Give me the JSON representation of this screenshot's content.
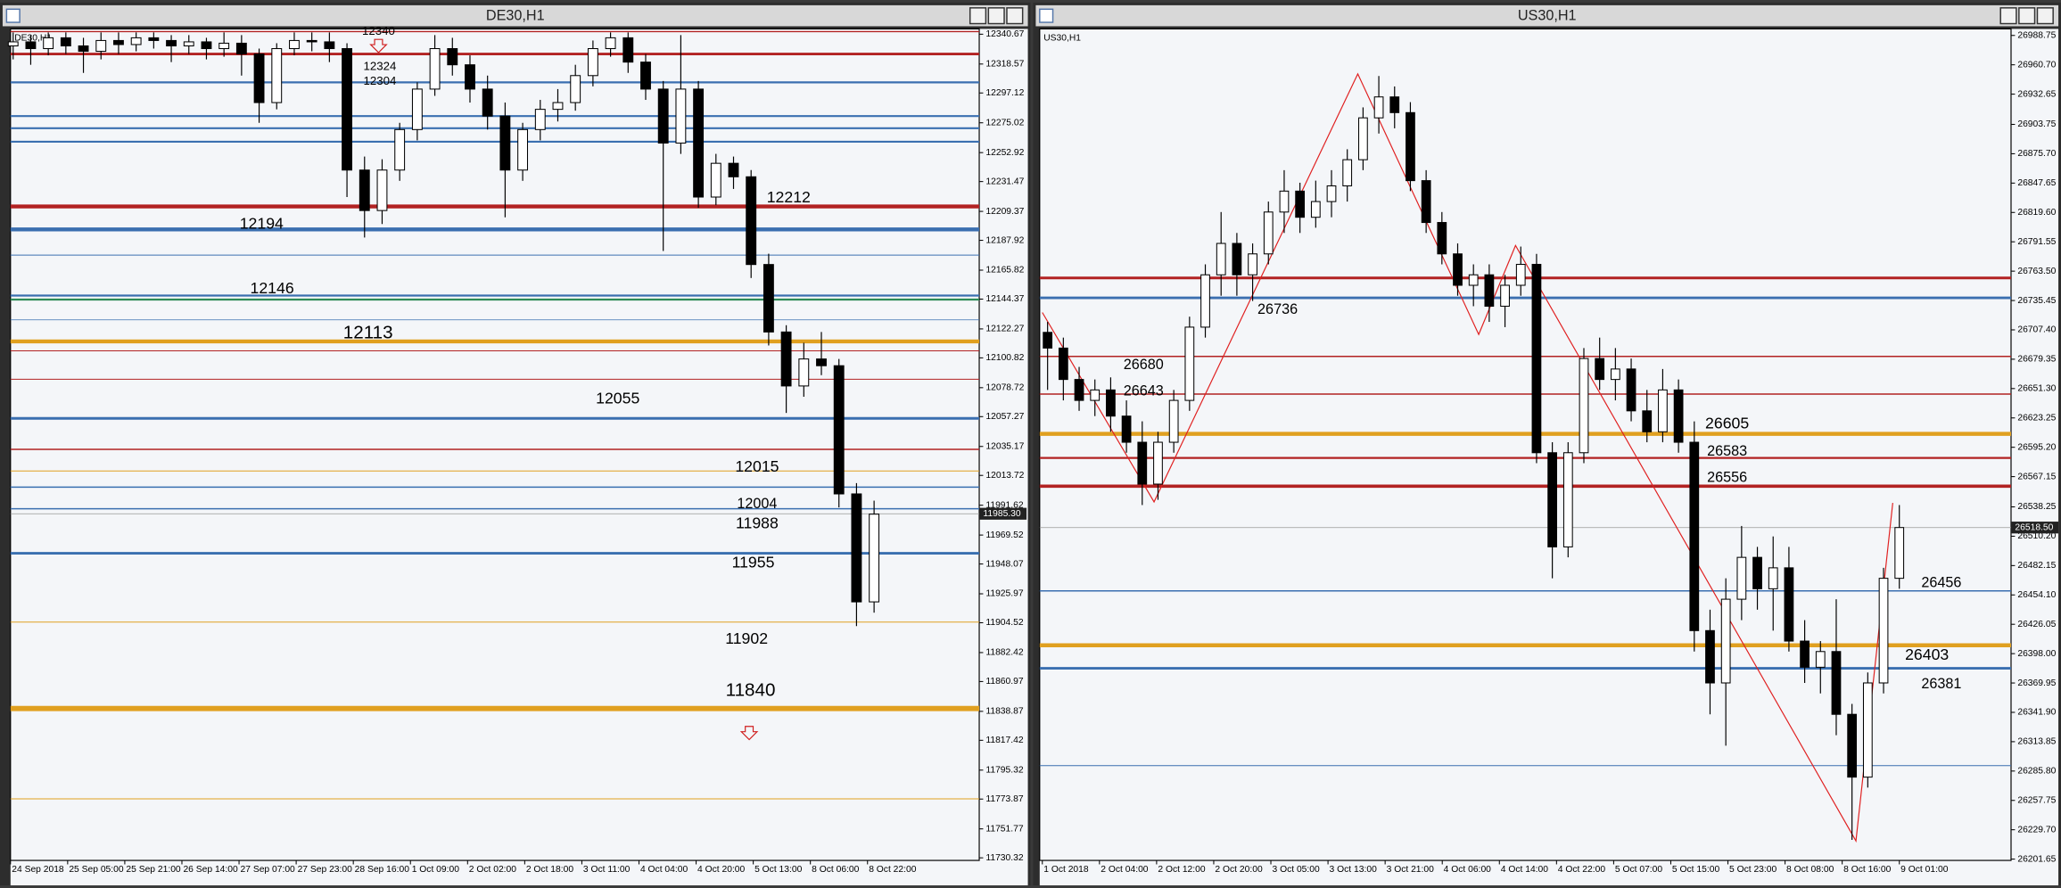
{
  "windows": [
    {
      "title": "DE30,H1",
      "symbol": "DE30,H1",
      "ylim": [
        11728.4,
        12344.6
      ],
      "price_ticks": [
        12340.67,
        12318.57,
        12297.12,
        12275.02,
        12252.92,
        12231.47,
        12209.37,
        12187.92,
        12165.82,
        12144.37,
        12122.27,
        12100.82,
        12078.72,
        12057.27,
        12035.17,
        12013.72,
        11991.62,
        11969.52,
        11948.07,
        11925.97,
        11904.52,
        11882.42,
        11860.97,
        11838.87,
        11817.42,
        11795.32,
        11773.87,
        11751.77,
        11730.32
      ],
      "time_labels": [
        "24 Sep 2018",
        "25 Sep 05:00",
        "25 Sep 21:00",
        "26 Sep 14:00",
        "27 Sep 07:00",
        "27 Sep 23:00",
        "28 Sep 16:00",
        "1 Oct 09:00",
        "2 Oct 02:00",
        "2 Oct 18:00",
        "3 Oct 11:00",
        "4 Oct 04:00",
        "4 Oct 20:00",
        "5 Oct 13:00",
        "8 Oct 06:00",
        "8 Oct 22:00"
      ],
      "bid": {
        "value": 11985.3,
        "label": "11985.30"
      },
      "levels": [
        {
          "price": 12342.6,
          "color": "#b22222",
          "width": 1
        },
        {
          "price": 12326,
          "color": "#b22222",
          "width": 2
        },
        {
          "price": 12305,
          "color": "#3a6fb0",
          "width": 1.5
        },
        {
          "price": 12280,
          "color": "#3a6fb0",
          "width": 1.5
        },
        {
          "price": 12271,
          "color": "#3a6fb0",
          "width": 1.5
        },
        {
          "price": 12261,
          "color": "#3a6fb0",
          "width": 1.5
        },
        {
          "price": 12213,
          "color": "#b22222",
          "width": 3
        },
        {
          "price": 12196,
          "color": "#3a6fb0",
          "width": 3
        },
        {
          "price": 12177,
          "color": "#3a6fb0",
          "width": 0.7
        },
        {
          "price": 12147,
          "color": "#3a6fb0",
          "width": 1.5
        },
        {
          "price": 12144,
          "color": "#2e8b57",
          "width": 1.5
        },
        {
          "price": 12129,
          "color": "#3a6fb0",
          "width": 0.5
        },
        {
          "price": 12113,
          "color": "#e0a020",
          "width": 3
        },
        {
          "price": 12106,
          "color": "#b22222",
          "width": 0.7
        },
        {
          "price": 12085,
          "color": "#b22222",
          "width": 0.7
        },
        {
          "price": 12056,
          "color": "#3a6fb0",
          "width": 2
        },
        {
          "price": 12033,
          "color": "#b22222",
          "width": 1
        },
        {
          "price": 12017,
          "color": "#e0a020",
          "width": 0.7
        },
        {
          "price": 12005,
          "color": "#3a6fb0",
          "width": 1
        },
        {
          "price": 11989,
          "color": "#3a6fb0",
          "width": 1
        },
        {
          "price": 11956,
          "color": "#3a6fb0",
          "width": 2
        },
        {
          "price": 11905,
          "color": "#e0a020",
          "width": 0.7
        },
        {
          "price": 11841,
          "color": "#e0a020",
          "width": 4
        },
        {
          "price": 11774,
          "color": "#e0a020",
          "width": 0.7
        }
      ],
      "labels": [
        "12340",
        "12324",
        "12304",
        "12212",
        "12194",
        "12146",
        "12113",
        "12055",
        "12015",
        "12004",
        "11988",
        "11955",
        "11902",
        "11840"
      ],
      "bull_color": "#ffffff",
      "bear_color": "#000000",
      "candles": [
        [
          12332,
          12342,
          12322,
          12335
        ],
        [
          12335,
          12340,
          12318,
          12330
        ],
        [
          12330,
          12342,
          12325,
          12338
        ],
        [
          12338,
          12342,
          12326,
          12332
        ],
        [
          12332,
          12338,
          12312,
          12328
        ],
        [
          12328,
          12342,
          12322,
          12336
        ],
        [
          12336,
          12342,
          12326,
          12333
        ],
        [
          12333,
          12342,
          12328,
          12338
        ],
        [
          12338,
          12342,
          12330,
          12336
        ],
        [
          12336,
          12340,
          12320,
          12332
        ],
        [
          12332,
          12340,
          12326,
          12335
        ],
        [
          12335,
          12338,
          12322,
          12330
        ],
        [
          12330,
          12342,
          12324,
          12334
        ],
        [
          12334,
          12340,
          12310,
          12326
        ],
        [
          12326,
          12330,
          12275,
          12290
        ],
        [
          12290,
          12334,
          12285,
          12330
        ],
        [
          12330,
          12342,
          12325,
          12336
        ],
        [
          12336,
          12342,
          12328,
          12335
        ],
        [
          12335,
          12342,
          12320,
          12330
        ],
        [
          12330,
          12334,
          12220,
          12240
        ],
        [
          12240,
          12250,
          12190,
          12210
        ],
        [
          12210,
          12248,
          12200,
          12240
        ],
        [
          12240,
          12275,
          12232,
          12270
        ],
        [
          12270,
          12305,
          12262,
          12300
        ],
        [
          12300,
          12340,
          12295,
          12330
        ],
        [
          12330,
          12338,
          12310,
          12318
        ],
        [
          12318,
          12325,
          12290,
          12300
        ],
        [
          12300,
          12310,
          12270,
          12280
        ],
        [
          12280,
          12290,
          12205,
          12240
        ],
        [
          12240,
          12275,
          12232,
          12270
        ],
        [
          12270,
          12292,
          12262,
          12285
        ],
        [
          12285,
          12300,
          12276,
          12290
        ],
        [
          12290,
          12318,
          12284,
          12310
        ],
        [
          12310,
          12336,
          12302,
          12330
        ],
        [
          12330,
          12342,
          12324,
          12338
        ],
        [
          12338,
          12342,
          12312,
          12320
        ],
        [
          12320,
          12326,
          12292,
          12300
        ],
        [
          12300,
          12306,
          12180,
          12260
        ],
        [
          12260,
          12340,
          12252,
          12300
        ],
        [
          12300,
          12306,
          12212,
          12220
        ],
        [
          12220,
          12252,
          12214,
          12245
        ],
        [
          12245,
          12250,
          12226,
          12235
        ],
        [
          12235,
          12240,
          12160,
          12170
        ],
        [
          12170,
          12178,
          12110,
          12120
        ],
        [
          12120,
          12125,
          12060,
          12080
        ],
        [
          12080,
          12112,
          12072,
          12100
        ],
        [
          12100,
          12120,
          12088,
          12095
        ],
        [
          12095,
          12100,
          11990,
          12000
        ],
        [
          12000,
          12008,
          11902,
          11920
        ],
        [
          11920,
          11995,
          11912,
          11985
        ]
      ]
    },
    {
      "title": "US30,H1",
      "symbol": "US30,H1",
      "ylim": [
        26200.4,
        26995.0
      ],
      "price_ticks": [
        26988.75,
        {
          "value": 26960.7,
          "label": "26960.70"
        },
        26932.65,
        26903.75,
        {
          "value": 26875.7,
          "label": "26875.70"
        },
        26847.65,
        {
          "value": 26819.6,
          "label": "26819.60"
        },
        26791.55,
        {
          "value": 26763.5,
          "label": "26763.50"
        },
        26735.45,
        {
          "value": 26707.4,
          "label": "26707.40"
        },
        26679.35,
        {
          "value": 26651.3,
          "label": "26651.30"
        },
        26623.25,
        {
          "value": 26595.2,
          "label": "26595.20"
        },
        26567.15,
        26538.25,
        {
          "value": 26510.2,
          "label": "26510.20"
        },
        26482.15,
        {
          "value": 26454.1,
          "label": "26454.10"
        },
        26426.05,
        {
          "value": 26398,
          "label": "26398.00"
        },
        26369.95,
        {
          "value": 26341.9,
          "label": "26341.90"
        },
        26313.85,
        {
          "value": 26285.8,
          "label": "26285.80"
        },
        26257.75,
        {
          "value": 26229.7,
          "label": "26229.70"
        },
        26201.65
      ],
      "time_labels": [
        "1 Oct 2018",
        "2 Oct 04:00",
        "2 Oct 12:00",
        "2 Oct 20:00",
        "3 Oct 05:00",
        "3 Oct 13:00",
        "3 Oct 21:00",
        "4 Oct 06:00",
        "4 Oct 14:00",
        "4 Oct 22:00",
        "5 Oct 07:00",
        "5 Oct 15:00",
        "5 Oct 23:00",
        "8 Oct 08:00",
        "8 Oct 16:00",
        "9 Oct 01:00"
      ],
      "bid": {
        "value": 26518.5,
        "label": "26518.50"
      },
      "levels": [
        {
          "price": 26757,
          "color": "#b22222",
          "width": 2
        },
        {
          "price": 26738,
          "color": "#3a6fb0",
          "width": 2
        },
        {
          "price": 26682,
          "color": "#b22222",
          "width": 1
        },
        {
          "price": 26646,
          "color": "#b22222",
          "width": 1
        },
        {
          "price": 26608,
          "color": "#e0a020",
          "width": 3
        },
        {
          "price": 26585,
          "color": "#b22222",
          "width": 1.5
        },
        {
          "price": 26558,
          "color": "#b22222",
          "width": 2.5
        },
        {
          "price": 26458,
          "color": "#3a6fb0",
          "width": 1
        },
        {
          "price": 26406,
          "color": "#e0a020",
          "width": 3
        },
        {
          "price": 26384,
          "color": "#3a6fb0",
          "width": 2
        },
        {
          "price": 26291,
          "color": "#3a6fb0",
          "width": 0.7
        }
      ],
      "labels": [
        "26736",
        "26680",
        "26643",
        "26605",
        "26583",
        "26556",
        "26456",
        "26403",
        "26381"
      ],
      "zigzag": [
        26724,
        26543,
        26952,
        26703,
        26788,
        26219,
        26542
      ],
      "bull_color": "#ffffff",
      "bear_color": "#000000",
      "candles": [
        [
          26705,
          26715,
          26650,
          26690
        ],
        [
          26690,
          26700,
          26640,
          26660
        ],
        [
          26660,
          26672,
          26630,
          26640
        ],
        [
          26640,
          26660,
          26625,
          26650
        ],
        [
          26650,
          26662,
          26610,
          26625
        ],
        [
          26625,
          26640,
          26590,
          26600
        ],
        [
          26600,
          26620,
          26540,
          26560
        ],
        [
          26560,
          26610,
          26545,
          26600
        ],
        [
          26600,
          26650,
          26590,
          26640
        ],
        [
          26640,
          26720,
          26630,
          26710
        ],
        [
          26710,
          26770,
          26700,
          26760
        ],
        [
          26760,
          26820,
          26740,
          26790
        ],
        [
          26790,
          26800,
          26740,
          26760
        ],
        [
          26760,
          26790,
          26735,
          26780
        ],
        [
          26780,
          26830,
          26770,
          26820
        ],
        [
          26820,
          26860,
          26800,
          26840
        ],
        [
          26840,
          26848,
          26800,
          26815
        ],
        [
          26815,
          26850,
          26805,
          26830
        ],
        [
          26830,
          26860,
          26815,
          26845
        ],
        [
          26845,
          26880,
          26830,
          26870
        ],
        [
          26870,
          26920,
          26860,
          26910
        ],
        [
          26910,
          26950,
          26895,
          26930
        ],
        [
          26930,
          26940,
          26900,
          26915
        ],
        [
          26915,
          26925,
          26840,
          26850
        ],
        [
          26850,
          26860,
          26800,
          26810
        ],
        [
          26810,
          26820,
          26770,
          26780
        ],
        [
          26780,
          26790,
          26740,
          26750
        ],
        [
          26750,
          26770,
          26730,
          26760
        ],
        [
          26760,
          26770,
          26715,
          26730
        ],
        [
          26730,
          26760,
          26710,
          26750
        ],
        [
          26750,
          26787,
          26740,
          26770
        ],
        [
          26770,
          26780,
          26580,
          26590
        ],
        [
          26590,
          26600,
          26470,
          26500
        ],
        [
          26500,
          26600,
          26490,
          26590
        ],
        [
          26590,
          26690,
          26580,
          26680
        ],
        [
          26680,
          26700,
          26650,
          26660
        ],
        [
          26660,
          26690,
          26640,
          26670
        ],
        [
          26670,
          26680,
          26620,
          26630
        ],
        [
          26630,
          26650,
          26600,
          26610
        ],
        [
          26610,
          26670,
          26600,
          26650
        ],
        [
          26650,
          26660,
          26590,
          26600
        ],
        [
          26600,
          26620,
          26400,
          26420
        ],
        [
          26420,
          26440,
          26340,
          26370
        ],
        [
          26370,
          26470,
          26310,
          26450
        ],
        [
          26450,
          26520,
          26430,
          26490
        ],
        [
          26490,
          26500,
          26440,
          26460
        ],
        [
          26460,
          26510,
          26420,
          26480
        ],
        [
          26480,
          26500,
          26400,
          26410
        ],
        [
          26410,
          26430,
          26370,
          26385
        ],
        [
          26385,
          26410,
          26360,
          26400
        ],
        [
          26400,
          26450,
          26320,
          26340
        ],
        [
          26340,
          26350,
          26220,
          26280
        ],
        [
          26280,
          26380,
          26270,
          26370
        ],
        [
          26370,
          26480,
          26360,
          26470
        ],
        [
          26470,
          26540,
          26460,
          26518.5
        ]
      ]
    }
  ]
}
